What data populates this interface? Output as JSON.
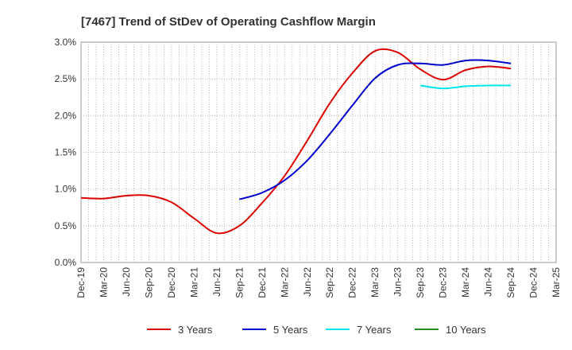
{
  "chart_data": {
    "type": "line",
    "title": "[7467]  Trend of StDev of Operating Cashflow Margin",
    "xlabel": "",
    "ylabel": "",
    "categories": [
      "Dec-19",
      "Mar-20",
      "Jun-20",
      "Sep-20",
      "Dec-20",
      "Mar-21",
      "Jun-21",
      "Sep-21",
      "Dec-21",
      "Mar-22",
      "Jun-22",
      "Sep-22",
      "Dec-22",
      "Mar-23",
      "Jun-23",
      "Sep-23",
      "Dec-23",
      "Mar-24",
      "Jun-24",
      "Sep-24",
      "Dec-24",
      "Mar-25"
    ],
    "ylim": [
      0,
      3.0
    ],
    "yticks": [
      "0.0%",
      "0.5%",
      "1.0%",
      "1.5%",
      "2.0%",
      "2.5%",
      "3.0%"
    ],
    "grid": true,
    "legend_position": "bottom",
    "series": [
      {
        "name": "3 Years",
        "color": "#dd0000",
        "values": [
          0.88,
          0.87,
          0.91,
          0.91,
          0.82,
          0.6,
          0.4,
          0.5,
          0.81,
          1.18,
          1.66,
          2.17,
          2.58,
          2.88,
          2.86,
          2.63,
          2.49,
          2.62,
          2.67,
          2.64,
          null,
          null
        ]
      },
      {
        "name": "5 Years",
        "color": "#0000cc",
        "values": [
          null,
          null,
          null,
          null,
          null,
          null,
          null,
          0.86,
          0.95,
          1.12,
          1.39,
          1.75,
          2.14,
          2.51,
          2.69,
          2.71,
          2.69,
          2.75,
          2.75,
          2.71,
          null,
          null
        ]
      },
      {
        "name": "7 Years",
        "color": "#00e5ee",
        "values": [
          null,
          null,
          null,
          null,
          null,
          null,
          null,
          null,
          null,
          null,
          null,
          null,
          null,
          null,
          null,
          2.41,
          2.37,
          2.4,
          2.41,
          2.41,
          null,
          null
        ]
      },
      {
        "name": "10 Years",
        "color": "#228b22",
        "values": [
          null,
          null,
          null,
          null,
          null,
          null,
          null,
          null,
          null,
          null,
          null,
          null,
          null,
          null,
          null,
          null,
          null,
          null,
          null,
          null,
          null,
          null
        ]
      }
    ]
  }
}
